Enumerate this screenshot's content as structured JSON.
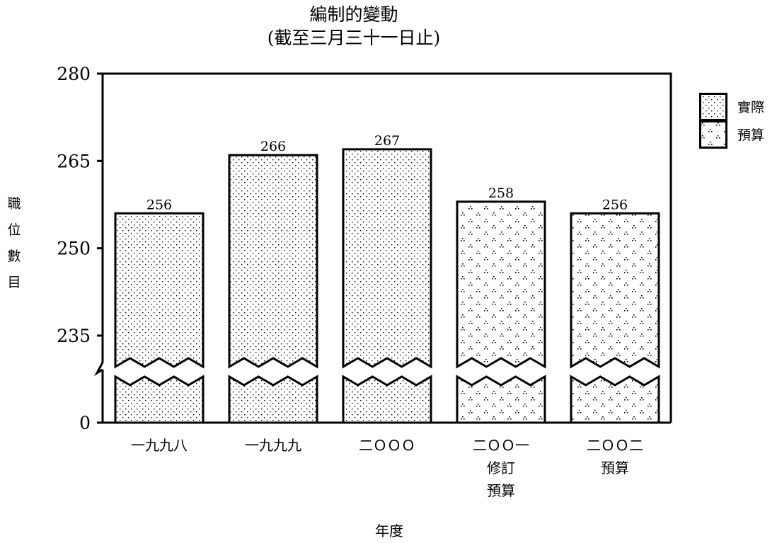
{
  "title": {
    "line1": "編制的變動",
    "line2": "(截至三月三十一日止)"
  },
  "chart_data": {
    "type": "bar",
    "categories": [
      [
        "一九九八"
      ],
      [
        "一九九九"
      ],
      [
        "二ＯＯＯ"
      ],
      [
        "二ＯＯ一",
        "修訂",
        "預算"
      ],
      [
        "二ＯＯ二",
        "預算"
      ]
    ],
    "values": [
      256,
      266,
      267,
      258,
      256
    ],
    "value_labels": [
      "256",
      "266",
      "267",
      "258",
      "256"
    ],
    "series_types": [
      "actual",
      "actual",
      "actual",
      "budget",
      "budget"
    ],
    "legend": [
      {
        "key": "actual",
        "label": "實際"
      },
      {
        "key": "budget",
        "label": "預算"
      }
    ],
    "legend_position": "top-right",
    "yticks": [
      0,
      235,
      250,
      265,
      280
    ],
    "ylim": [
      0,
      280
    ],
    "axis_break": "between 0 and 235",
    "xlabel": "年度",
    "ylabel": [
      "職",
      "位",
      "數",
      "目"
    ],
    "grid": false,
    "colors": {
      "fill": "#ffffff",
      "stroke": "#000000",
      "pattern": "#000000"
    }
  }
}
